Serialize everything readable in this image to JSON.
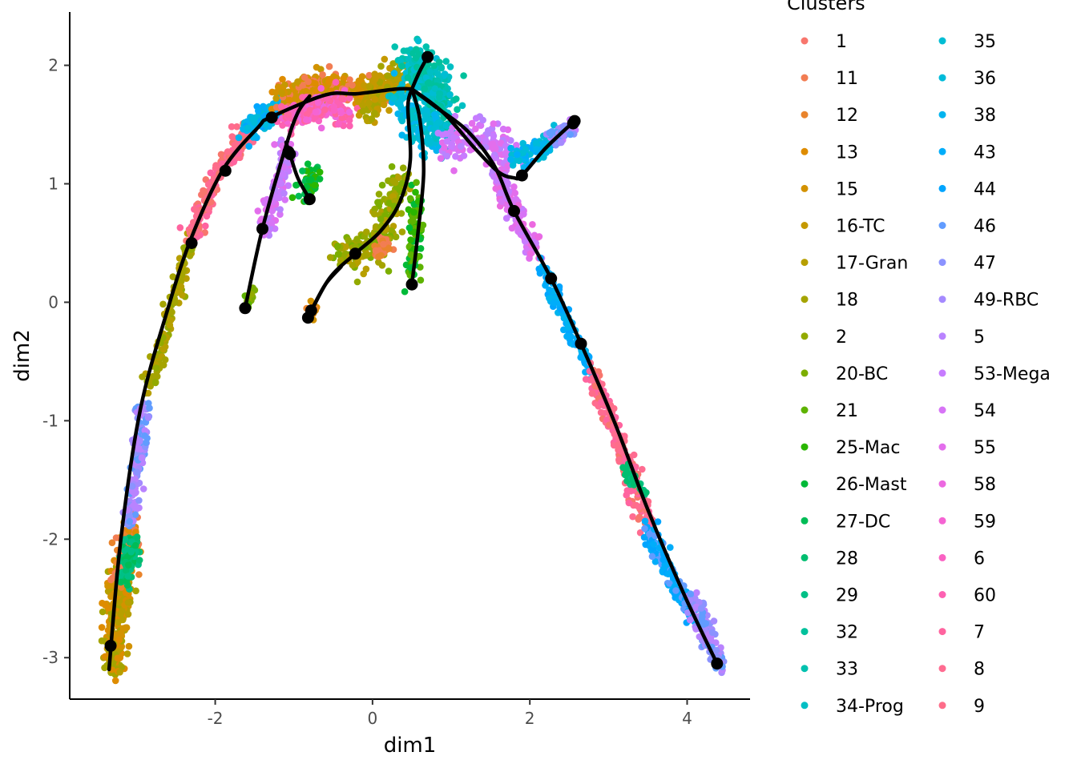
{
  "chart_data": {
    "type": "scatter",
    "title": "",
    "xlabel": "dim1",
    "ylabel": "dim2",
    "xlim": [
      -3.85,
      4.8
    ],
    "ylim": [
      -3.35,
      2.45
    ],
    "xticks": [
      -2,
      0,
      2,
      4
    ],
    "yticks": [
      -3,
      -2,
      -1,
      0,
      1,
      2
    ],
    "xtick_labels": [
      "-2",
      "0",
      "2",
      "4"
    ],
    "ytick_labels": [
      "-3",
      "-2",
      "-1",
      "0",
      "1",
      "2"
    ],
    "grid": false,
    "legend_title": "Clusters",
    "legend_placement": "right",
    "clusters": [
      {
        "name": "1",
        "color": "#F8766D"
      },
      {
        "name": "11",
        "color": "#F27D53"
      },
      {
        "name": "12",
        "color": "#E9842C"
      },
      {
        "name": "13",
        "color": "#DE8C00"
      },
      {
        "name": "15",
        "color": "#D39200"
      },
      {
        "name": "16-TC",
        "color": "#C59900"
      },
      {
        "name": "17-Gran",
        "color": "#B79F00"
      },
      {
        "name": "18",
        "color": "#A5A400"
      },
      {
        "name": "2",
        "color": "#93AA00"
      },
      {
        "name": "20-BC",
        "color": "#7CAE00"
      },
      {
        "name": "21",
        "color": "#5EB300"
      },
      {
        "name": "25-Mac",
        "color": "#2AB600"
      },
      {
        "name": "26-Mast",
        "color": "#00BA38"
      },
      {
        "name": "27-DC",
        "color": "#00BC56"
      },
      {
        "name": "28",
        "color": "#00BE70"
      },
      {
        "name": "29",
        "color": "#00C086"
      },
      {
        "name": "32",
        "color": "#00C19C"
      },
      {
        "name": "33",
        "color": "#00C1AF"
      },
      {
        "name": "34-Prog",
        "color": "#00BFC4"
      },
      {
        "name": "35",
        "color": "#00BDD4"
      },
      {
        "name": "36",
        "color": "#00BBDA"
      },
      {
        "name": "38",
        "color": "#00B4EF"
      },
      {
        "name": "43",
        "color": "#00ADFA"
      },
      {
        "name": "44",
        "color": "#00A5FF"
      },
      {
        "name": "46",
        "color": "#619CFF"
      },
      {
        "name": "47",
        "color": "#8B93FF"
      },
      {
        "name": "49-RBC",
        "color": "#A58AFF"
      },
      {
        "name": "5",
        "color": "#B983FF"
      },
      {
        "name": "53-Mega",
        "color": "#C77CFF"
      },
      {
        "name": "54",
        "color": "#D774F6"
      },
      {
        "name": "55",
        "color": "#E36EEC"
      },
      {
        "name": "58",
        "color": "#EC69E0"
      },
      {
        "name": "59",
        "color": "#F564D3"
      },
      {
        "name": "6",
        "color": "#FA62C3"
      },
      {
        "name": "60",
        "color": "#FD61B2"
      },
      {
        "name": "7",
        "color": "#FF649F"
      },
      {
        "name": "8",
        "color": "#FF6C91"
      },
      {
        "name": "9",
        "color": "#FE6D8A"
      }
    ],
    "point_regions": [
      {
        "clusters": [
          "13",
          "15",
          "17-Gran",
          "18"
        ],
        "path": [
          [
            -3.3,
            -3.1
          ],
          [
            -3.25,
            -2.6
          ],
          [
            -3.2,
            -2.3
          ]
        ],
        "spread": 0.07,
        "n": 260
      },
      {
        "clusters": [
          "12",
          "13",
          "11"
        ],
        "path": [
          [
            -3.2,
            -2.3
          ],
          [
            -3.05,
            -1.9
          ]
        ],
        "spread": 0.07,
        "n": 90
      },
      {
        "clusters": [
          "28",
          "29",
          "27-DC"
        ],
        "path": [
          [
            -3.15,
            -2.35
          ],
          [
            -3.05,
            -2.05
          ]
        ],
        "spread": 0.05,
        "n": 90
      },
      {
        "clusters": [
          "46",
          "47",
          "49-RBC",
          "5"
        ],
        "path": [
          [
            -3.1,
            -1.9
          ],
          [
            -2.95,
            -1.2
          ],
          [
            -2.9,
            -0.85
          ]
        ],
        "spread": 0.05,
        "n": 130
      },
      {
        "clusters": [
          "18",
          "2",
          "17-Gran"
        ],
        "path": [
          [
            -2.85,
            -0.75
          ],
          [
            -2.6,
            -0.15
          ],
          [
            -2.3,
            0.55
          ]
        ],
        "spread": 0.04,
        "n": 120
      },
      {
        "clusters": [
          "8",
          "9",
          "1",
          "7"
        ],
        "path": [
          [
            -2.3,
            0.55
          ],
          [
            -2.0,
            1.05
          ],
          [
            -1.7,
            1.35
          ],
          [
            -1.55,
            1.45
          ]
        ],
        "spread": 0.05,
        "n": 170
      },
      {
        "clusters": [
          "38",
          "43",
          "44",
          "36"
        ],
        "path": [
          [
            -1.6,
            1.45
          ],
          [
            -1.2,
            1.65
          ],
          [
            -1.0,
            1.72
          ]
        ],
        "spread": 0.05,
        "n": 150
      },
      {
        "clusters": [
          "13",
          "15",
          "16-TC",
          "11"
        ],
        "path": [
          [
            -1.2,
            1.75
          ],
          [
            -0.6,
            1.82
          ],
          [
            0.0,
            1.75
          ],
          [
            0.3,
            1.78
          ]
        ],
        "spread": 0.06,
        "n": 330
      },
      {
        "clusters": [
          "58",
          "59",
          "6",
          "60",
          "7"
        ],
        "path": [
          [
            -1.1,
            1.55
          ],
          [
            -0.7,
            1.65
          ],
          [
            -0.3,
            1.6
          ]
        ],
        "spread": 0.06,
        "n": 170
      },
      {
        "clusters": [
          "17-Gran",
          "18",
          "16-TC"
        ],
        "path": [
          [
            -0.1,
            1.65
          ],
          [
            0.2,
            1.85
          ],
          [
            0.4,
            1.95
          ]
        ],
        "spread": 0.08,
        "n": 150
      },
      {
        "clusters": [
          "32",
          "33",
          "34-Prog",
          "35"
        ],
        "path": [
          [
            0.5,
            2.05
          ],
          [
            0.7,
            1.85
          ],
          [
            0.95,
            1.65
          ]
        ],
        "spread": 0.1,
        "n": 330
      },
      {
        "clusters": [
          "35",
          "36",
          "38",
          "34-Prog"
        ],
        "path": [
          [
            0.3,
            1.7
          ],
          [
            0.6,
            1.45
          ],
          [
            0.9,
            1.4
          ]
        ],
        "spread": 0.09,
        "n": 120
      },
      {
        "clusters": [
          "53-Mega",
          "54",
          "55",
          "5"
        ],
        "path": [
          [
            0.95,
            1.3
          ],
          [
            1.4,
            1.4
          ],
          [
            1.7,
            1.3
          ],
          [
            1.6,
            1.15
          ]
        ],
        "spread": 0.08,
        "n": 140
      },
      {
        "clusters": [
          "38",
          "43",
          "35",
          "36"
        ],
        "path": [
          [
            1.8,
            1.2
          ],
          [
            2.1,
            1.3
          ],
          [
            2.3,
            1.38
          ]
        ],
        "spread": 0.05,
        "n": 80
      },
      {
        "clusters": [
          "46",
          "47",
          "49-RBC",
          "53-Mega"
        ],
        "path": [
          [
            2.3,
            1.38
          ],
          [
            2.6,
            1.5
          ]
        ],
        "spread": 0.04,
        "n": 50
      },
      {
        "clusters": [
          "53-Mega",
          "54",
          "55",
          "58"
        ],
        "path": [
          [
            1.6,
            1.05
          ],
          [
            1.85,
            0.7
          ],
          [
            2.1,
            0.4
          ]
        ],
        "spread": 0.05,
        "n": 140
      },
      {
        "clusters": [
          "43",
          "44",
          "38"
        ],
        "path": [
          [
            2.15,
            0.3
          ],
          [
            2.45,
            -0.15
          ],
          [
            2.8,
            -0.6
          ]
        ],
        "spread": 0.04,
        "n": 110
      },
      {
        "clusters": [
          "8",
          "9",
          "1",
          "7"
        ],
        "path": [
          [
            2.8,
            -0.6
          ],
          [
            3.2,
            -1.3
          ],
          [
            3.5,
            -1.9
          ]
        ],
        "spread": 0.05,
        "n": 210
      },
      {
        "clusters": [
          "28",
          "29"
        ],
        "path": [
          [
            3.2,
            -1.4
          ],
          [
            3.45,
            -1.6
          ]
        ],
        "spread": 0.03,
        "n": 30
      },
      {
        "clusters": [
          "43",
          "44",
          "46"
        ],
        "path": [
          [
            3.5,
            -1.9
          ],
          [
            3.8,
            -2.3
          ],
          [
            4.1,
            -2.65
          ]
        ],
        "spread": 0.05,
        "n": 150
      },
      {
        "clusters": [
          "46",
          "47",
          "49-RBC",
          "5"
        ],
        "path": [
          [
            4.05,
            -2.5
          ],
          [
            4.25,
            -2.8
          ],
          [
            4.4,
            -3.05
          ]
        ],
        "spread": 0.05,
        "n": 110
      },
      {
        "clusters": [
          "54",
          "55",
          "53-Mega",
          "5"
        ],
        "path": [
          [
            -1.35,
            0.6
          ],
          [
            -1.2,
            0.95
          ],
          [
            -1.1,
            1.3
          ]
        ],
        "spread": 0.06,
        "n": 110
      },
      {
        "clusters": [
          "25-Mac",
          "26-Mast",
          "27-DC"
        ],
        "path": [
          [
            -0.85,
            0.95
          ],
          [
            -0.75,
            1.05
          ]
        ],
        "spread": 0.06,
        "n": 50
      },
      {
        "clusters": [
          "2",
          "20-BC",
          "21"
        ],
        "path": [
          [
            -1.62,
            -0.05
          ],
          [
            -1.55,
            0.1
          ]
        ],
        "spread": 0.03,
        "n": 25
      },
      {
        "clusters": [
          "13",
          "15",
          "12"
        ],
        "path": [
          [
            -0.8,
            -0.12
          ],
          [
            -0.75,
            -0.03
          ]
        ],
        "spread": 0.03,
        "n": 25
      },
      {
        "clusters": [
          "2",
          "20-BC",
          "18",
          "17-Gran"
        ],
        "path": [
          [
            -0.45,
            0.4
          ],
          [
            0.0,
            0.45
          ],
          [
            0.2,
            0.7
          ],
          [
            0.4,
            1.05
          ]
        ],
        "spread": 0.08,
        "n": 200
      },
      {
        "clusters": [
          "11",
          "12"
        ],
        "path": [
          [
            0.05,
            0.45
          ],
          [
            0.2,
            0.5
          ]
        ],
        "spread": 0.04,
        "n": 40
      },
      {
        "clusters": [
          "25-Mac",
          "26-Mast",
          "21"
        ],
        "path": [
          [
            0.5,
            0.2
          ],
          [
            0.55,
            0.6
          ],
          [
            0.55,
            0.95
          ]
        ],
        "spread": 0.04,
        "n": 90
      }
    ],
    "trajectories": [
      [
        [
          -3.35,
          -3.1
        ],
        [
          -3.2,
          -2.0
        ],
        [
          -2.95,
          -0.9
        ],
        [
          -2.6,
          -0.05
        ],
        [
          -2.3,
          0.55
        ],
        [
          -1.9,
          1.12
        ],
        [
          -1.45,
          1.48
        ],
        [
          -1.3,
          1.56
        ],
        [
          -0.6,
          1.75
        ],
        [
          -0.2,
          1.76
        ],
        [
          0.3,
          1.8
        ],
        [
          0.5,
          1.8
        ]
      ],
      [
        [
          0.5,
          1.8
        ],
        [
          0.6,
          1.95
        ],
        [
          0.7,
          2.07
        ]
      ],
      [
        [
          -1.62,
          -0.05
        ],
        [
          -1.4,
          0.62
        ],
        [
          -1.1,
          1.32
        ],
        [
          -0.95,
          1.6
        ],
        [
          -0.8,
          1.74
        ]
      ],
      [
        [
          -0.8,
          0.87
        ],
        [
          -0.95,
          1.05
        ],
        [
          -1.05,
          1.25
        ],
        [
          -1.1,
          1.35
        ]
      ],
      [
        [
          -0.82,
          -0.13
        ],
        [
          -0.55,
          0.2
        ],
        [
          -0.22,
          0.41
        ],
        [
          0.1,
          0.6
        ],
        [
          0.35,
          0.85
        ],
        [
          0.48,
          1.2
        ],
        [
          0.45,
          1.65
        ],
        [
          0.5,
          1.8
        ]
      ],
      [
        [
          -0.78,
          -0.07
        ],
        [
          -0.6,
          0.15
        ],
        [
          -0.4,
          0.3
        ]
      ],
      [
        [
          0.5,
          0.15
        ],
        [
          0.58,
          0.6
        ],
        [
          0.65,
          1.1
        ],
        [
          0.6,
          1.55
        ],
        [
          0.5,
          1.8
        ]
      ],
      [
        [
          0.5,
          1.8
        ],
        [
          0.9,
          1.6
        ],
        [
          1.3,
          1.3
        ],
        [
          1.6,
          1.1
        ],
        [
          1.8,
          1.05
        ],
        [
          1.9,
          1.07
        ],
        [
          2.2,
          1.3
        ],
        [
          2.55,
          1.52
        ]
      ],
      [
        [
          0.5,
          1.8
        ],
        [
          0.8,
          1.65
        ],
        [
          1.2,
          1.45
        ],
        [
          1.55,
          1.15
        ],
        [
          1.8,
          0.77
        ],
        [
          2.27,
          0.2
        ],
        [
          2.65,
          -0.35
        ],
        [
          3.1,
          -1.05
        ],
        [
          3.5,
          -1.75
        ],
        [
          3.95,
          -2.45
        ],
        [
          4.38,
          -3.05
        ]
      ]
    ],
    "nodes": [
      [
        -3.33,
        -2.9
      ],
      [
        -2.3,
        0.5
      ],
      [
        -1.87,
        1.11
      ],
      [
        -1.28,
        1.56
      ],
      [
        -1.07,
        1.27
      ],
      [
        -1.05,
        1.25
      ],
      [
        -1.4,
        0.62
      ],
      [
        -1.62,
        -0.05
      ],
      [
        -0.8,
        0.87
      ],
      [
        -0.22,
        0.41
      ],
      [
        -0.78,
        -0.07
      ],
      [
        -0.82,
        -0.13
      ],
      [
        0.5,
        0.15
      ],
      [
        0.7,
        2.07
      ],
      [
        1.8,
        0.77
      ],
      [
        1.9,
        1.07
      ],
      [
        2.27,
        0.2
      ],
      [
        2.65,
        -0.35
      ],
      [
        2.55,
        1.51
      ],
      [
        2.57,
        1.53
      ],
      [
        4.38,
        -3.05
      ]
    ]
  }
}
